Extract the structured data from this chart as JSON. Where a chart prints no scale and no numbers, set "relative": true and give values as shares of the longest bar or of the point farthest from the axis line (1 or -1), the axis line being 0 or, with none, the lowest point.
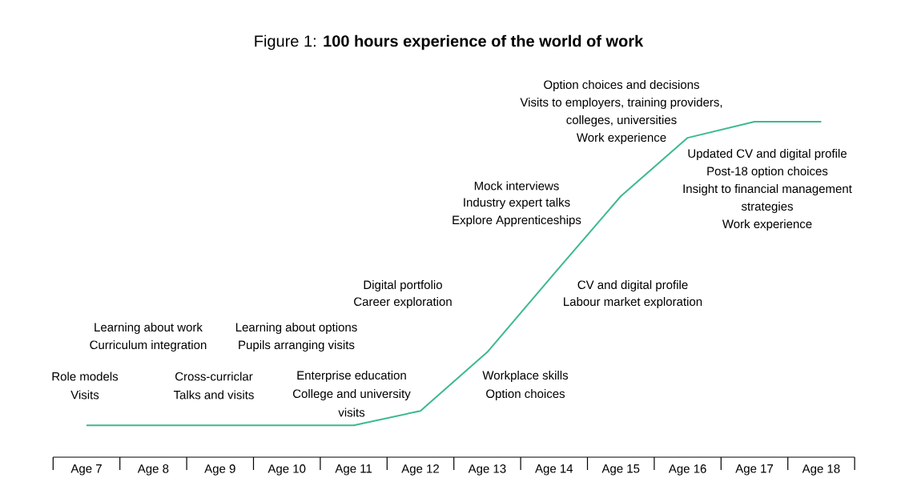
{
  "chart_data": {
    "type": "line",
    "title": "Figure 1: **100 hours experience of the world of work**",
    "categories": [
      "Age 7",
      "Age 8",
      "Age 9",
      "Age 10",
      "Age 11",
      "Age 12",
      "Age 13",
      "Age 14",
      "Age 15",
      "Age 16",
      "Age 17",
      "Age 18"
    ],
    "values": [
      0.095,
      0.095,
      0.095,
      0.095,
      0.095,
      0.138,
      0.313,
      0.547,
      0.778,
      0.952,
      1,
      1
    ],
    "color": "#3db891",
    "relative": true,
    "annotations": [
      "Role models",
      "Visits",
      "Learning about work",
      "Curriculum integration",
      "Cross-curriclar",
      "Talks and visits",
      "Learning about options",
      "Pupils arranging visits",
      "Enterprise education",
      "College and university",
      "visits",
      "Digital portfolio",
      "Career exploration",
      "Workplace skills",
      "Option choices",
      "Mock interviews",
      "Industry expert talks",
      "Explore Apprenticeships",
      "CV and digital profile",
      "Labour market exploration",
      "Option choices and decisions",
      "Visits to employers, training providers,",
      "colleges, universities",
      "Work experience",
      "Updated CV and digital profile",
      "Post-18 option choices",
      "Insight to financial management",
      "strategies",
      "Work experience"
    ]
  }
}
